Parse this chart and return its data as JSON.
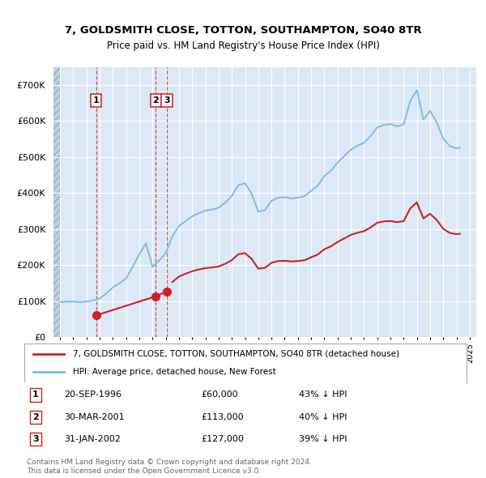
{
  "title1": "7, GOLDSMITH CLOSE, TOTTON, SOUTHAMPTON, SO40 8TR",
  "title2": "Price paid vs. HM Land Registry's House Price Index (HPI)",
  "legend_line1": "7, GOLDSMITH CLOSE, TOTTON, SOUTHAMPTON, SO40 8TR (detached house)",
  "legend_line2": "HPI: Average price, detached house, New Forest",
  "footer1": "Contains HM Land Registry data © Crown copyright and database right 2024.",
  "footer2": "This data is licensed under the Open Government Licence v3.0.",
  "sales": [
    {
      "num": 1,
      "date_label": "20-SEP-1996",
      "price": 60000,
      "pct": "43% ↓ HPI",
      "year_x": 1996.72
    },
    {
      "num": 2,
      "date_label": "30-MAR-2001",
      "price": 113000,
      "pct": "40% ↓ HPI",
      "year_x": 2001.24
    },
    {
      "num": 3,
      "date_label": "31-JAN-2002",
      "price": 127000,
      "pct": "39% ↓ HPI",
      "year_x": 2002.08
    }
  ],
  "hpi_color": "#7ab8e8",
  "price_color": "#cc2222",
  "background_plot": "#dce8f5",
  "xlim_left": 1993.5,
  "xlim_right": 2025.5,
  "ylim_bottom": 0,
  "ylim_top": 750000,
  "hpi_years": [
    1994.0,
    1994.5,
    1995.0,
    1995.5,
    1996.0,
    1996.5,
    1997.0,
    1997.5,
    1998.0,
    1998.5,
    1999.0,
    1999.5,
    2000.0,
    2000.5,
    2001.0,
    2001.5,
    2002.0,
    2002.5,
    2003.0,
    2003.5,
    2004.0,
    2004.5,
    2005.0,
    2005.5,
    2006.0,
    2006.5,
    2007.0,
    2007.5,
    2008.0,
    2008.5,
    2009.0,
    2009.5,
    2010.0,
    2010.5,
    2011.0,
    2011.5,
    2012.0,
    2012.5,
    2013.0,
    2013.5,
    2014.0,
    2014.5,
    2015.0,
    2015.5,
    2016.0,
    2016.5,
    2017.0,
    2017.5,
    2018.0,
    2018.5,
    2019.0,
    2019.5,
    2020.0,
    2020.5,
    2021.0,
    2021.5,
    2022.0,
    2022.5,
    2023.0,
    2023.5,
    2024.0,
    2024.25
  ],
  "hpi_values": [
    97000,
    98000,
    98500,
    96800,
    98500,
    101200,
    107000,
    121000,
    138000,
    149000,
    163000,
    195000,
    230000,
    260000,
    195000,
    212000,
    233000,
    280000,
    308000,
    322000,
    335000,
    344000,
    351000,
    354000,
    359000,
    373000,
    392000,
    422000,
    427000,
    398000,
    348000,
    352000,
    378000,
    387000,
    388000,
    385000,
    387000,
    391000,
    406000,
    420000,
    447000,
    462000,
    484000,
    502000,
    520000,
    531000,
    539000,
    558000,
    582000,
    589000,
    591000,
    585000,
    590000,
    655000,
    686000,
    604000,
    628000,
    597000,
    551000,
    530000,
    524000,
    526000
  ],
  "price_years": [
    1996.72,
    2001.24,
    2002.08
  ],
  "price_values": [
    60000,
    113000,
    127000
  ]
}
